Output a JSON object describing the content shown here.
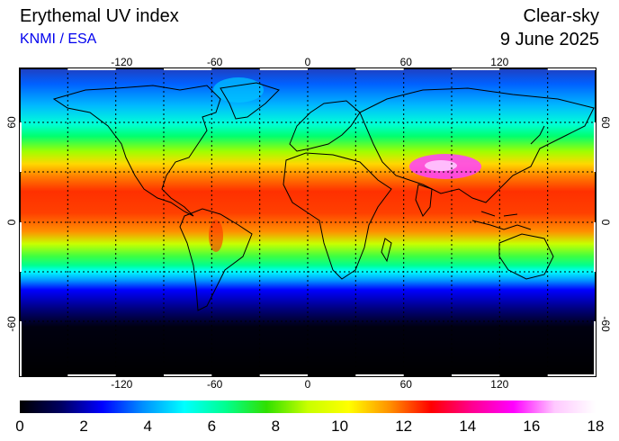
{
  "header": {
    "title": "Erythemal UV index",
    "credit": "KNMI / ESA",
    "condition": "Clear-sky",
    "date": "9 June 2025"
  },
  "map": {
    "projection": "equirectangular",
    "lon_ticks": [
      "-120",
      "-60",
      "0",
      "60",
      "120"
    ],
    "lat_ticks": [
      "60",
      "0",
      "-60"
    ],
    "gridlines": "dotted every 30 degrees"
  },
  "colorbar": {
    "min": 0,
    "max": 18,
    "labels": [
      "0",
      "2",
      "4",
      "6",
      "8",
      "10",
      "12",
      "14",
      "16",
      "18"
    ],
    "colors": [
      "#000000",
      "#000060",
      "#0000ff",
      "#0090ff",
      "#00ffff",
      "#00ff90",
      "#30e000",
      "#c8ff00",
      "#ffff00",
      "#ff9000",
      "#ff0000",
      "#ff0090",
      "#ff00ff",
      "#ffc8ff",
      "#ffffff"
    ]
  }
}
